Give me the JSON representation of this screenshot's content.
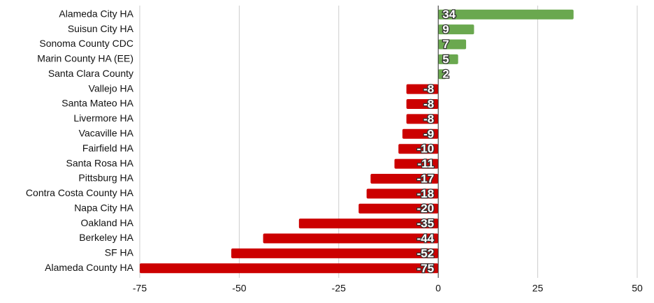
{
  "chart_data": {
    "type": "hbar",
    "categories": [
      "Alameda City HA",
      "Suisun City HA",
      "Sonoma County CDC",
      "Marin County HA (EE)",
      "Santa Clara County",
      "Vallejo HA",
      "Santa Mateo HA",
      "Livermore HA",
      "Vacaville HA",
      "Fairfield HA",
      "Santa Rosa HA",
      "Pittsburg HA",
      "Contra Costa County HA",
      "Napa City HA",
      "Oakland HA",
      "Berkeley HA",
      "SF HA",
      "Alameda County HA"
    ],
    "values": [
      34,
      9,
      7,
      5,
      2,
      -8,
      -8,
      -8,
      -9,
      -10,
      -11,
      -17,
      -18,
      -20,
      -35,
      -44,
      -52,
      -75
    ],
    "color_positive": "#6aa84f",
    "color_negative": "#cc0000",
    "xlim": [
      -75,
      50
    ],
    "xticks": [
      -75,
      -50,
      -25,
      0,
      25,
      50
    ],
    "grid": true
  }
}
